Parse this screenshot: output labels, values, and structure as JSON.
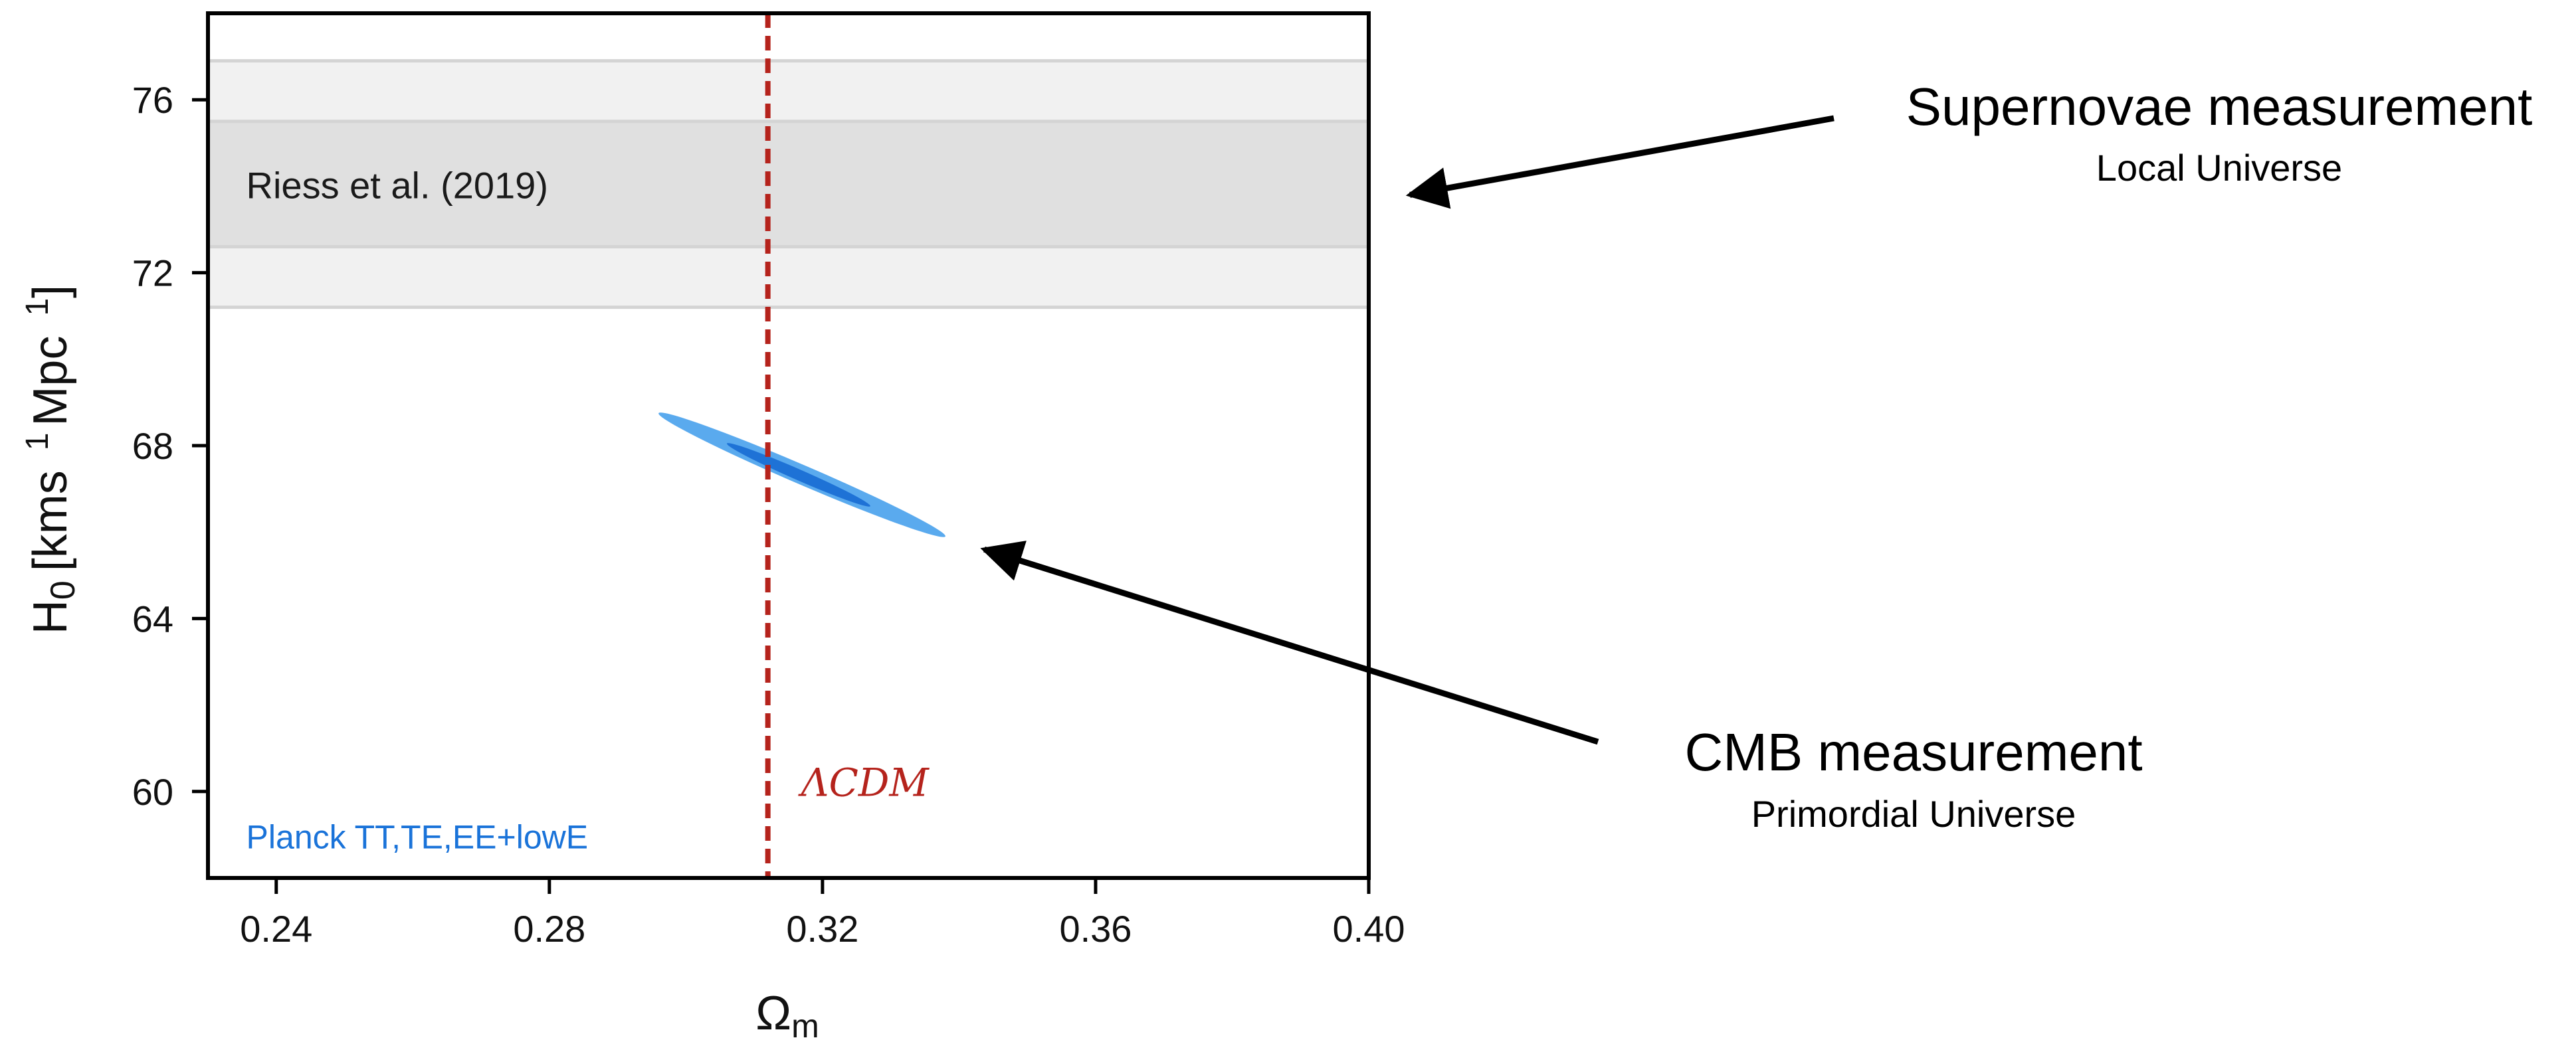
{
  "chart_data": {
    "type": "scatter",
    "xlabel": "Ω",
    "xlabel_sub": "m",
    "ylabel_main": "H",
    "ylabel_sub": "0",
    "ylabel_unit": "[kms",
    "ylabel_sup1": "1",
    "ylabel_unit2": "Mpc",
    "ylabel_sup2": "1",
    "ylabel_close": "]",
    "xlim": [
      0.23,
      0.4
    ],
    "ylim": [
      58,
      78
    ],
    "xticks": [
      0.24,
      0.28,
      0.32,
      0.36,
      0.4
    ],
    "xtick_labels": [
      "0.24",
      "0.28",
      "0.32",
      "0.36",
      "0.40"
    ],
    "yticks": [
      60,
      64,
      68,
      72,
      76
    ],
    "ytick_labels": [
      "60",
      "64",
      "68",
      "72",
      "76"
    ],
    "grid": false,
    "bands": [
      {
        "name": "Riess et al. (2019)",
        "center": 74.03,
        "inner": [
          72.6,
          75.5
        ],
        "outer": [
          71.2,
          76.9
        ],
        "color_inner": "#e0e0e0",
        "color_outer": "#f1f1f1",
        "edge_color": "#d4d4d4"
      }
    ],
    "contour": {
      "name": "Planck TT,TE,EE+lowE",
      "color_outer": "#5aaaee",
      "color_inner": "#1e72d6",
      "label_color": "#1a73d9",
      "center": [
        0.3165,
        67.35
      ],
      "outer_endpoints": [
        [
          0.296,
          68.75
        ],
        [
          0.338,
          65.9
        ]
      ],
      "outer_width": 0.45,
      "inner_endpoints": [
        [
          0.306,
          68.05
        ],
        [
          0.327,
          66.6
        ]
      ],
      "inner_width": 0.25
    },
    "vline": {
      "x": 0.312,
      "label": "ΛCDM",
      "color": "#b5231c"
    },
    "annotations": [
      {
        "title": "Supernovae measurement",
        "subtitle": "Local Universe",
        "arrow_to": [
          0.4,
          73.8
        ]
      },
      {
        "title": "CMB measurement",
        "subtitle": "Primordial Universe",
        "arrow_to": [
          0.34,
          65.6
        ]
      }
    ]
  }
}
